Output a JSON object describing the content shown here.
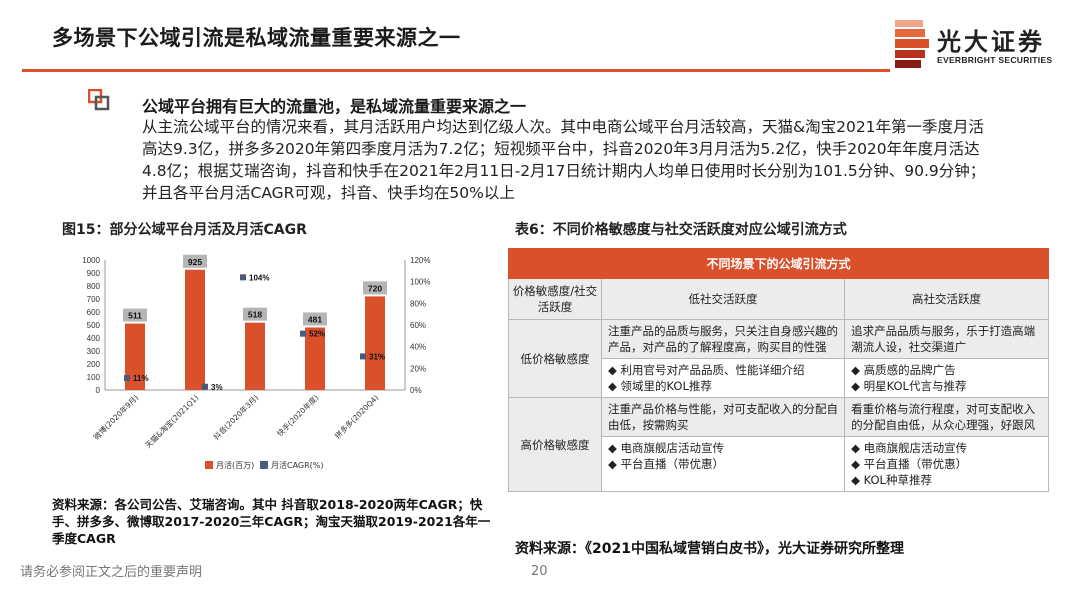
{
  "header": {
    "title": "多场景下公域引流是私域流量重要来源之一",
    "logo_name": "光大证券",
    "logo_en": "EVERBRIGHT SECURITIES"
  },
  "summary": {
    "heading": "公域平台拥有巨大的流量池，是私域流量重要来源之一",
    "body": "从主流公域平台的情况来看，其月活跃用户均达到亿级人次。其中电商公域平台月活较高，天猫&淘宝2021年第一季度月活高达9.3亿，拼多多2020年第四季度月活为7.2亿；短视频平台中，抖音2020年3月月活为5.2亿，快手2020年年度月活达4.8亿；根据艾瑞咨询，抖音和快手在2021年2月11日-2月17日统计期内人均单日使用时长分别为101.5分钟、90.9分钟；并且各平台月活CAGR可观，抖音、快手均在50%以上"
  },
  "figure": {
    "title": "图15：部分公域平台月活及月活CAGR",
    "source": "资料来源：各公司公告、艾瑞咨询。其中 抖音取2018-2020两年CAGR；快手、拼多多、微博取2017-2020三年CAGR；淘宝天猫取2019-2021各年一季度CAGR"
  },
  "chart_data": {
    "type": "bar",
    "categories": [
      "微博(2020年9月)",
      "天猫&淘宝(2021Q1)",
      "抖音(2020年3月)",
      "快手(2020年度)",
      "拼多多(2020Q4)"
    ],
    "series": [
      {
        "name": "月活(百万)",
        "type": "bar",
        "axis": "left",
        "values": [
          511,
          925,
          518,
          481,
          720
        ],
        "labels": [
          "511",
          "925",
          "518",
          "481",
          "720"
        ]
      },
      {
        "name": "月活CAGR(%)",
        "type": "scatter",
        "axis": "right",
        "values": [
          11,
          3,
          104,
          52,
          31
        ],
        "labels": [
          "11%",
          "3%",
          "104%",
          "52%",
          "31%"
        ]
      }
    ],
    "left_axis": {
      "ticks": [
        "0",
        "100",
        "200",
        "300",
        "400",
        "500",
        "600",
        "700",
        "800",
        "900",
        "1000"
      ],
      "ylim": [
        0,
        1000
      ]
    },
    "right_axis": {
      "ticks": [
        "0%",
        "20%",
        "40%",
        "60%",
        "80%",
        "100%",
        "120%"
      ],
      "ylim": [
        0,
        120
      ]
    },
    "legend_position": "bottom",
    "colors": {
      "bar": "#d9502a",
      "marker": "#4a5a7a",
      "label_box": "#b5b5b5"
    }
  },
  "table": {
    "title": "表6：不同价格敏感度与社交活跃度对应公域引流方式",
    "banner": "不同场景下的公域引流方式",
    "corner": "价格敏感度/社交活跃度",
    "col_low": "低社交活跃度",
    "col_high": "高社交活跃度",
    "rows": [
      {
        "label": "低价格敏感度",
        "low_desc": "注重产品的品质与服务，只关注自身感兴趣的产品，对产品的了解程度高，购买目的性强",
        "low_methods": "◆ 利用官号对产品品质、性能详细介绍\n◆ 领域里的KOL推荐",
        "high_desc": "追求产品品质与服务，乐于打造高端潮流人设，社交渠道广",
        "high_methods": "◆ 高质感的品牌广告\n◆ 明星KOL代言与推荐"
      },
      {
        "label": "高价格敏感度",
        "low_desc": "注重产品价格与性能，对可支配收入的分配自由低，按需购买",
        "low_methods": "◆ 电商旗舰店活动宣传\n◆ 平台直播（带优惠）",
        "high_desc": "看重价格与流行程度，对可支配收入的分配自由低，从众心理强，好跟风",
        "high_methods": "◆ 电商旗舰店活动宣传\n◆ 平台直播（带优惠）\n◆ KOL种草推荐"
      }
    ],
    "source": "资料来源：《2021中国私域营销白皮书》，光大证券研究所整理"
  },
  "footer": {
    "note": "请务必参阅正文之后的重要声明",
    "page": "20"
  },
  "colors": {
    "accent": "#d9502a",
    "logo_red": "#d9502a",
    "logo_dark": "#8a1a14"
  }
}
